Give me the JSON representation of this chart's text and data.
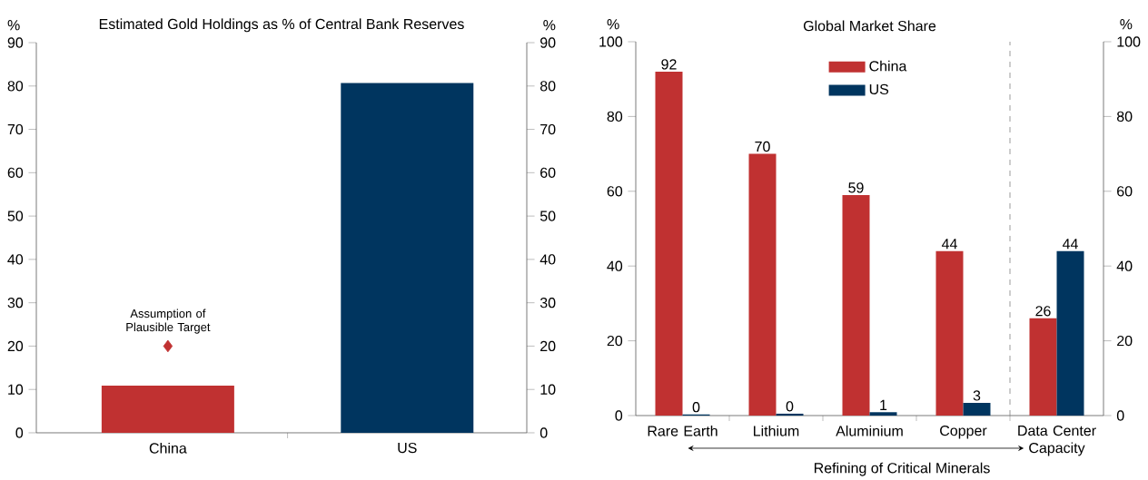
{
  "chart_data": [
    {
      "type": "bar",
      "title": "Estimated Gold Holdings as % of Central Bank Reserves",
      "ylabel": "%",
      "y2label": "%",
      "categories": [
        "China",
        "US"
      ],
      "series": [
        {
          "colors": [
            "#c03131",
            "#00355f"
          ],
          "values": [
            10.9,
            80.7
          ]
        },
        {
          "type": "scatter",
          "x": [
            "China"
          ],
          "values": [
            20
          ],
          "color": "#c03131",
          "marker": "diamond"
        }
      ],
      "ylim": [
        0,
        90
      ],
      "yticks": [
        0,
        10,
        20,
        30,
        40,
        50,
        60,
        70,
        80,
        90
      ],
      "y2lim": [
        0,
        90
      ],
      "y2ticks": [
        0,
        10,
        20,
        30,
        40,
        50,
        60,
        70,
        80,
        90
      ],
      "annotations": [
        {
          "text": "Assumption of Plausible Target",
          "x": "China",
          "y": 20
        }
      ]
    },
    {
      "type": "bar",
      "title": "Global Market Share",
      "ylabel": "%",
      "y2label": "%",
      "categories": [
        "Rare Earth",
        "Lithium",
        "Aluminium",
        "Copper",
        "Data Center Capacity"
      ],
      "series": [
        {
          "name": "China",
          "color": "#c03131",
          "values": [
            92,
            70,
            59,
            44,
            26
          ],
          "value_labels": [
            "92",
            "70",
            "59",
            "44",
            "26"
          ]
        },
        {
          "name": "US",
          "color": "#00355f",
          "values": [
            0.3,
            0.5,
            0.9,
            3.4,
            44
          ],
          "value_labels": [
            "0",
            "0",
            "1",
            "3",
            "44"
          ]
        }
      ],
      "ylim": [
        0,
        100
      ],
      "yticks": [
        0,
        20,
        40,
        60,
        80,
        100
      ],
      "y2lim": [
        0,
        100
      ],
      "y2ticks": [
        0,
        20,
        40,
        60,
        80,
        100
      ],
      "legend": "top",
      "annotations": [
        "Refining of Critical Minerals"
      ]
    }
  ]
}
